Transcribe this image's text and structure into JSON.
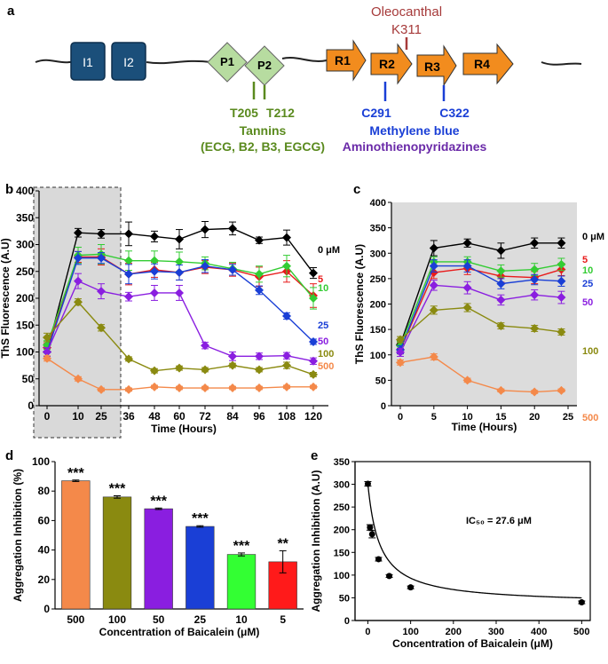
{
  "panel_labels": {
    "a": "a",
    "b": "b",
    "c": "c",
    "d": "d",
    "e": "e"
  },
  "colors": {
    "c0": "#000000",
    "c5": "#e81a1a",
    "c10": "#33cc33",
    "c25": "#1a3fd6",
    "c50": "#8a1ee0",
    "c100": "#8a8a10",
    "c500": "#f4894a",
    "domainI": "#1b4f7a",
    "domainP": "#b7dca0",
    "domainR": "#f28c1e",
    "oleo": "#a63a3a",
    "tannin": "#5a8a1e",
    "mb": "#1a3fd6",
    "atp": "#6a2aa8",
    "shade": "#dcdcdc"
  },
  "panel_a": {
    "domains": [
      "I1",
      "I2",
      "P1",
      "P2",
      "R1",
      "R2",
      "R3",
      "R4"
    ],
    "oleocanthal": {
      "name": "Oleocanthal",
      "site": "K311"
    },
    "tannins": {
      "sites": [
        "T205",
        "T212"
      ],
      "name": "Tannins",
      "compounds": "(ECG, B2, B3, EGCG)"
    },
    "methylene": {
      "sites": [
        "C291",
        "C322"
      ],
      "name": "Methylene blue"
    },
    "aminothieno": "Aminothienopyridazines"
  },
  "chart_data": [
    {
      "id": "b",
      "type": "line",
      "xlabel": "Time (Hours)",
      "ylabel": "ThS Fluorescence (A.U)",
      "x": [
        0,
        10,
        25,
        36,
        48,
        60,
        72,
        84,
        96,
        108,
        120
      ],
      "x_ticks": [
        "0",
        "10",
        "25",
        "36",
        "48",
        "60",
        "72",
        "84",
        "96",
        "108",
        "120"
      ],
      "ylim": [
        0,
        400
      ],
      "y_ticks": [
        "0",
        "50",
        "100",
        "150",
        "200",
        "250",
        "300",
        "350",
        "400"
      ],
      "shaded_range": [
        0,
        25
      ],
      "series": [
        {
          "name": "0 µM",
          "label": "0 μM",
          "color": "#000000",
          "values": [
            100,
            322,
            320,
            320,
            315,
            310,
            328,
            330,
            308,
            313,
            247
          ],
          "err": [
            8,
            8,
            8,
            22,
            10,
            18,
            15,
            12,
            6,
            14,
            10
          ]
        },
        {
          "name": "5",
          "label": "5",
          "color": "#e81a1a",
          "values": [
            108,
            277,
            277,
            245,
            253,
            248,
            258,
            253,
            240,
            250,
            205
          ],
          "err": [
            8,
            10,
            15,
            20,
            14,
            14,
            12,
            12,
            18,
            20,
            22
          ]
        },
        {
          "name": "10",
          "label": "10",
          "color": "#33cc33",
          "values": [
            113,
            280,
            282,
            270,
            270,
            268,
            265,
            255,
            245,
            260,
            200
          ],
          "err": [
            8,
            15,
            18,
            18,
            18,
            18,
            12,
            12,
            15,
            20,
            20
          ]
        },
        {
          "name": "25",
          "label": "25",
          "color": "#1a3fd6",
          "values": [
            100,
            275,
            275,
            245,
            250,
            248,
            260,
            253,
            215,
            167,
            119
          ],
          "err": [
            8,
            12,
            10,
            18,
            14,
            14,
            12,
            10,
            8,
            6,
            5
          ]
        },
        {
          "name": "50",
          "label": "50",
          "color": "#8a1ee0",
          "values": [
            100,
            232,
            213,
            203,
            210,
            210,
            112,
            92,
            92,
            93,
            83
          ],
          "err": [
            8,
            14,
            14,
            8,
            14,
            14,
            6,
            8,
            6,
            6,
            6
          ]
        },
        {
          "name": "100",
          "label": "100",
          "color": "#8a8a10",
          "values": [
            127,
            193,
            145,
            87,
            65,
            70,
            67,
            75,
            67,
            75,
            58
          ],
          "err": [
            8,
            6,
            6,
            4,
            4,
            4,
            4,
            4,
            4,
            6,
            4
          ]
        },
        {
          "name": "500",
          "label": "500",
          "color": "#f4894a",
          "values": [
            88,
            50,
            30,
            30,
            35,
            33,
            33,
            33,
            33,
            35,
            35
          ],
          "err": [
            5,
            4,
            3,
            3,
            3,
            3,
            3,
            3,
            3,
            3,
            3
          ]
        }
      ]
    },
    {
      "id": "c",
      "type": "line",
      "xlabel": "Time (Hours)",
      "ylabel": "ThS Fluorescence (A.U)",
      "x": [
        0,
        5,
        10,
        15,
        20,
        25
      ],
      "xlim": [
        0,
        25
      ],
      "x_ticks": [
        "0",
        "5",
        "10",
        "15",
        "20",
        "25"
      ],
      "ylim": [
        0,
        400
      ],
      "y_ticks": [
        "0",
        "50",
        "100",
        "150",
        "200",
        "250",
        "300",
        "350",
        "400"
      ],
      "series_x": [
        0,
        5,
        10,
        15,
        20,
        24
      ],
      "series": [
        {
          "name": "0 µM",
          "label": "0 μM",
          "color": "#000000",
          "values": [
            120,
            310,
            320,
            305,
            320,
            320
          ],
          "err": [
            8,
            15,
            8,
            15,
            10,
            10
          ]
        },
        {
          "name": "5",
          "label": "5",
          "color": "#e81a1a",
          "values": [
            110,
            262,
            270,
            255,
            252,
            268
          ],
          "err": [
            8,
            12,
            12,
            12,
            12,
            12
          ]
        },
        {
          "name": "10",
          "label": "10",
          "color": "#33cc33",
          "values": [
            118,
            283,
            283,
            265,
            268,
            278
          ],
          "err": [
            8,
            10,
            10,
            12,
            12,
            12
          ]
        },
        {
          "name": "25",
          "label": "25",
          "color": "#1a3fd6",
          "values": [
            110,
            275,
            275,
            240,
            248,
            245
          ],
          "err": [
            8,
            12,
            12,
            10,
            10,
            10
          ]
        },
        {
          "name": "50",
          "label": "50",
          "color": "#8a1ee0",
          "values": [
            105,
            237,
            232,
            208,
            218,
            213
          ],
          "err": [
            8,
            10,
            12,
            10,
            10,
            12
          ]
        },
        {
          "name": "100",
          "label": "100",
          "color": "#8a8a10",
          "values": [
            130,
            188,
            193,
            157,
            152,
            145
          ],
          "err": [
            6,
            8,
            8,
            6,
            6,
            6
          ]
        },
        {
          "name": "500",
          "label": "500",
          "color": "#f4894a",
          "values": [
            85,
            96,
            50,
            30,
            27,
            30
          ],
          "err": [
            5,
            6,
            4,
            3,
            3,
            3
          ]
        }
      ]
    },
    {
      "id": "d",
      "type": "bar",
      "xlabel": "Concentration of Baicalein (μM)",
      "ylabel": "Aggregation Inhibition (%)",
      "categories": [
        "500",
        "100",
        "50",
        "25",
        "10",
        "5"
      ],
      "values": [
        87,
        76,
        68,
        56,
        37,
        32
      ],
      "err": [
        0.5,
        0.8,
        0.5,
        0.5,
        1.0,
        7.5
      ],
      "significance": [
        "***",
        "***",
        "***",
        "***",
        "***",
        "**"
      ],
      "colors": [
        "#f4894a",
        "#8a8a10",
        "#8a1ee0",
        "#1a3fd6",
        "#33ff33",
        "#ff1a1a"
      ],
      "ylim": [
        0,
        100
      ],
      "y_ticks": [
        "0",
        "20",
        "40",
        "60",
        "80",
        "100"
      ]
    },
    {
      "id": "e",
      "type": "scatter",
      "xlabel": "Concentration of Baicalein (μM)",
      "ylabel": "Aggregation Inhibition (A.U)",
      "x": [
        0,
        5,
        10,
        25,
        50,
        100,
        500
      ],
      "values": [
        301,
        205,
        190,
        135,
        98,
        73,
        40
      ],
      "err": [
        5,
        6,
        8,
        4,
        3,
        3,
        3
      ],
      "annotation": "IC₅₀ = 27.6 μM",
      "xlim": [
        -30,
        520
      ],
      "ylim": [
        0,
        350
      ],
      "x_ticks": [
        "0",
        "100",
        "200",
        "300",
        "400",
        "500"
      ],
      "y_ticks": [
        "0",
        "50",
        "100",
        "150",
        "200",
        "250",
        "300",
        "350"
      ]
    }
  ]
}
